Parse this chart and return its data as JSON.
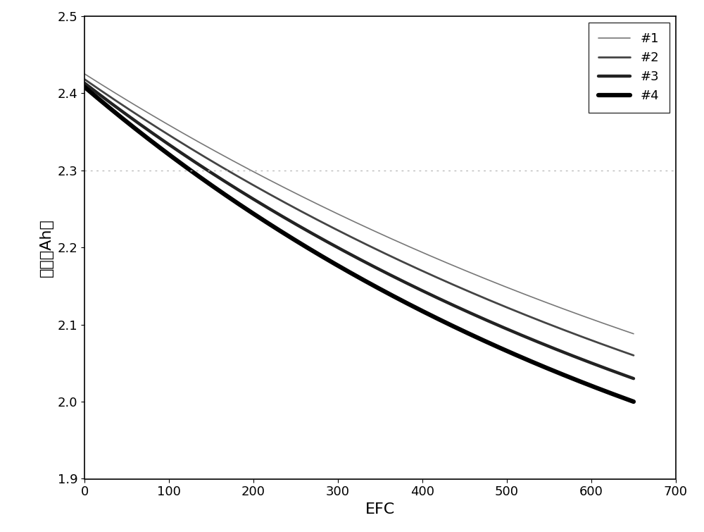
{
  "title": "",
  "xlabel": "EFC",
  "ylabel": "容量（Ah）",
  "xlim": [
    0,
    700
  ],
  "ylim": [
    1.9,
    2.5
  ],
  "xticks": [
    0,
    100,
    200,
    300,
    400,
    500,
    600,
    700
  ],
  "yticks": [
    1.9,
    2.0,
    2.1,
    2.2,
    2.3,
    2.4,
    2.5
  ],
  "hline_y": 2.3,
  "hline_color": "#bbbbbb",
  "hline_style": "dotted",
  "series": [
    {
      "label": "#1",
      "start_cap": 2.425,
      "end_cap": 2.088,
      "color": "#777777",
      "linewidth": 1.2,
      "alpha": 0.8,
      "fade_rate": 0.0042
    },
    {
      "label": "#2",
      "start_cap": 2.418,
      "end_cap": 2.06,
      "color": "#444444",
      "linewidth": 2.0,
      "alpha": 0.9,
      "fade_rate": 0.0046
    },
    {
      "label": "#3",
      "start_cap": 2.413,
      "end_cap": 2.03,
      "color": "#222222",
      "linewidth": 3.2,
      "alpha": 1.0,
      "fade_rate": 0.005
    },
    {
      "label": "#4",
      "start_cap": 2.408,
      "end_cap": 2.0,
      "color": "#000000",
      "linewidth": 4.5,
      "alpha": 1.0,
      "fade_rate": 0.0055
    }
  ],
  "background_color": "#ffffff",
  "legend_loc": "upper right",
  "legend_fontsize": 13,
  "axis_fontsize": 16,
  "tick_fontsize": 13,
  "curve_power": 2.5
}
